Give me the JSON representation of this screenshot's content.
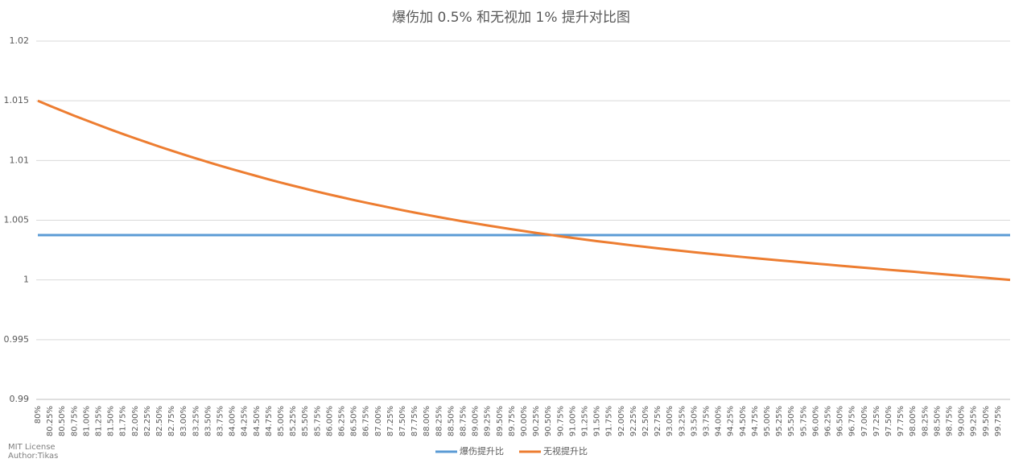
{
  "chart_data": {
    "type": "line",
    "title": "爆伤加 0.5% 和无视加 1% 提升对比图",
    "categories": [
      "80%",
      "80.25%",
      "80.50%",
      "80.75%",
      "81.00%",
      "81.25%",
      "81.50%",
      "81.75%",
      "82.00%",
      "82.25%",
      "82.50%",
      "82.75%",
      "83.00%",
      "83.25%",
      "83.50%",
      "83.75%",
      "84.00%",
      "84.25%",
      "84.50%",
      "84.75%",
      "85.00%",
      "85.25%",
      "85.50%",
      "85.75%",
      "86.00%",
      "86.25%",
      "86.50%",
      "86.75%",
      "87.00%",
      "87.25%",
      "87.50%",
      "87.75%",
      "88.00%",
      "88.25%",
      "88.50%",
      "88.75%",
      "89.00%",
      "89.25%",
      "89.50%",
      "89.75%",
      "90.00%",
      "90.25%",
      "90.50%",
      "90.75%",
      "91.00%",
      "91.25%",
      "91.50%",
      "91.75%",
      "92.00%",
      "92.25%",
      "92.50%",
      "92.75%",
      "93.00%",
      "93.25%",
      "93.50%",
      "93.75%",
      "94.00%",
      "94.25%",
      "94.50%",
      "94.75%",
      "95.00%",
      "95.25%",
      "95.50%",
      "95.75%",
      "96.00%",
      "96.25%",
      "96.50%",
      "96.75%",
      "97.00%",
      "97.25%",
      "97.50%",
      "97.75%",
      "98.00%",
      "98.25%",
      "98.50%",
      "98.75%",
      "99.00%",
      "99.25%",
      "99.50%",
      "99.75%",
      null
    ],
    "series": [
      {
        "name": "爆伤提升比",
        "color": "#5b9bd5",
        "values": [
          1.00375,
          1.00375,
          1.00375,
          1.00375,
          1.00375,
          1.00375,
          1.00375,
          1.00375,
          1.00375,
          1.00375,
          1.00375,
          1.00375,
          1.00375,
          1.00375,
          1.00375,
          1.00375,
          1.00375,
          1.00375,
          1.00375,
          1.00375,
          1.00375,
          1.00375,
          1.00375,
          1.00375,
          1.00375,
          1.00375,
          1.00375,
          1.00375,
          1.00375,
          1.00375,
          1.00375,
          1.00375,
          1.00375,
          1.00375,
          1.00375,
          1.00375,
          1.00375,
          1.00375,
          1.00375,
          1.00375,
          1.00375,
          1.00375,
          1.00375,
          1.00375,
          1.00375,
          1.00375,
          1.00375,
          1.00375,
          1.00375,
          1.00375,
          1.00375,
          1.00375,
          1.00375,
          1.00375,
          1.00375,
          1.00375,
          1.00375,
          1.00375,
          1.00375,
          1.00375,
          1.00375,
          1.00375,
          1.00375,
          1.00375,
          1.00375,
          1.00375,
          1.00375,
          1.00375,
          1.00375,
          1.00375,
          1.00375,
          1.00375,
          1.00375,
          1.00375,
          1.00375,
          1.00375,
          1.00375,
          1.00375,
          1.00375,
          1.00375,
          1.00375
        ]
      },
      {
        "name": "无视提升比",
        "color": "#ed7d31",
        "values": [
          1.015,
          1.01457,
          1.01416,
          1.01375,
          1.01336,
          1.01297,
          1.01259,
          1.01222,
          1.01186,
          1.01151,
          1.01116,
          1.01083,
          1.0105,
          1.01018,
          1.00987,
          1.00956,
          1.00927,
          1.00898,
          1.0087,
          1.00842,
          1.00815,
          1.00789,
          1.00764,
          1.00739,
          1.00715,
          1.00692,
          1.00669,
          1.00647,
          1.00626,
          1.00605,
          1.00584,
          1.00564,
          1.00545,
          1.00526,
          1.00508,
          1.0049,
          1.00473,
          1.00456,
          1.0044,
          1.00424,
          1.00409,
          1.00394,
          1.0038,
          1.00365,
          1.00352,
          1.00338,
          1.00325,
          1.00313,
          1.003,
          1.00288,
          1.00277,
          1.00265,
          1.00254,
          1.00243,
          1.00232,
          1.00222,
          1.00212,
          1.00202,
          1.00192,
          1.00182,
          1.00173,
          1.00164,
          1.00155,
          1.00146,
          1.00137,
          1.00128,
          1.00119,
          1.00111,
          1.00102,
          1.00094,
          1.00085,
          1.00077,
          1.00069,
          1.0006,
          1.00052,
          1.00043,
          1.00035,
          1.00026,
          1.00018,
          1.00009,
          1.0
        ]
      }
    ],
    "ylim": [
      0.99,
      1.02
    ],
    "yticks": [
      0.99,
      0.995,
      1,
      1.005,
      1.01,
      1.015,
      1.02
    ],
    "grid": true,
    "legend": "bottom",
    "annotations": [
      "MIT License",
      "Author:Tikas"
    ]
  }
}
